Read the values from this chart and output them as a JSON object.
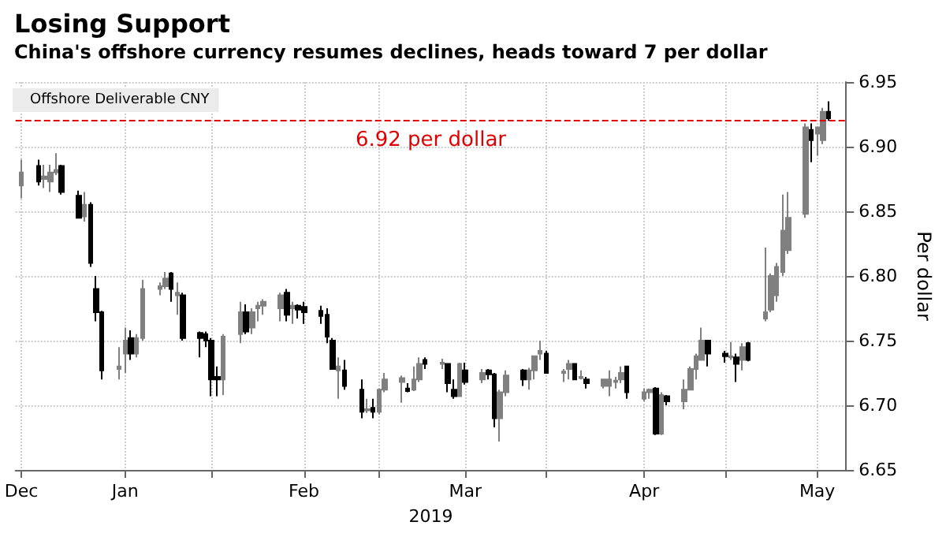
{
  "chart_data": {
    "type": "candlestick",
    "title": "Losing Support",
    "subtitle": "China's offshore currency resumes declines, heads toward 7 per dollar",
    "xlabel": "2019",
    "ylabel": "Per dollar",
    "x": [
      "2018-12-14",
      "2018-12-17",
      "2018-12-18",
      "2018-12-19",
      "2018-12-20",
      "2018-12-21",
      "2018-12-24",
      "2018-12-25",
      "2018-12-26",
      "2018-12-27",
      "2018-12-28",
      "2018-12-31",
      "2019-01-01",
      "2019-01-02",
      "2019-01-03",
      "2019-01-04",
      "2019-01-07",
      "2019-01-08",
      "2019-01-09",
      "2019-01-10",
      "2019-01-11",
      "2019-01-14",
      "2019-01-15",
      "2019-01-16",
      "2019-01-17",
      "2019-01-18",
      "2019-01-21",
      "2019-01-22",
      "2019-01-23",
      "2019-01-24",
      "2019-01-25",
      "2019-01-28",
      "2019-01-29",
      "2019-01-30",
      "2019-01-31",
      "2019-02-01",
      "2019-02-04",
      "2019-02-05",
      "2019-02-06",
      "2019-02-07",
      "2019-02-08",
      "2019-02-11",
      "2019-02-12",
      "2019-02-13",
      "2019-02-14",
      "2019-02-15",
      "2019-02-18",
      "2019-02-19",
      "2019-02-20",
      "2019-02-21",
      "2019-02-22",
      "2019-02-25",
      "2019-02-26",
      "2019-02-27",
      "2019-02-28",
      "2019-03-01",
      "2019-03-04",
      "2019-03-05",
      "2019-03-06",
      "2019-03-07",
      "2019-03-08",
      "2019-03-11",
      "2019-03-12",
      "2019-03-13",
      "2019-03-14",
      "2019-03-15",
      "2019-03-18",
      "2019-03-19",
      "2019-03-20",
      "2019-03-21",
      "2019-03-22",
      "2019-03-25",
      "2019-03-26",
      "2019-03-27",
      "2019-03-28",
      "2019-03-29",
      "2019-04-01",
      "2019-04-02",
      "2019-04-03",
      "2019-04-04",
      "2019-04-05",
      "2019-04-08",
      "2019-04-09",
      "2019-04-10",
      "2019-04-11",
      "2019-04-12",
      "2019-04-15",
      "2019-04-16",
      "2019-04-17",
      "2019-04-18",
      "2019-04-19",
      "2019-04-22",
      "2019-04-23",
      "2019-04-24",
      "2019-04-25",
      "2019-04-26",
      "2019-04-29",
      "2019-04-30",
      "2019-05-01",
      "2019-05-02",
      "2019-05-03"
    ],
    "series": [
      {
        "name": "Offshore Deliverable CNY",
        "ohlc": [
          [
            6.87,
            6.89,
            6.86,
            6.88
          ],
          [
            6.885,
            6.89,
            6.87,
            6.873
          ],
          [
            6.875,
            6.886,
            6.868,
            6.877
          ],
          [
            6.873,
            6.886,
            6.865,
            6.88
          ],
          [
            6.88,
            6.895,
            6.878,
            6.882
          ],
          [
            6.885,
            6.886,
            6.863,
            6.865
          ],
          [
            6.862,
            6.866,
            6.845,
            6.845
          ],
          [
            6.846,
            6.865,
            6.842,
            6.855
          ],
          [
            6.855,
            6.857,
            6.807,
            6.81
          ],
          [
            6.79,
            6.8,
            6.765,
            6.772
          ],
          [
            6.772,
            6.773,
            6.72,
            6.727
          ],
          [
            6.728,
            6.745,
            6.72,
            6.73
          ],
          [
            6.74,
            6.76,
            6.725,
            6.75
          ],
          [
            6.752,
            6.758,
            6.735,
            6.74
          ],
          [
            6.74,
            6.755,
            6.737,
            6.752
          ],
          [
            6.752,
            6.797,
            6.75,
            6.79
          ],
          [
            6.79,
            6.795,
            6.785,
            6.792
          ],
          [
            6.792,
            6.803,
            6.79,
            6.798
          ],
          [
            6.802,
            6.803,
            6.78,
            6.79
          ],
          [
            6.785,
            6.795,
            6.77,
            6.787
          ],
          [
            6.785,
            6.787,
            6.75,
            6.752
          ],
          [
            6.756,
            6.757,
            6.737,
            6.752
          ],
          [
            6.755,
            6.757,
            6.745,
            6.75
          ],
          [
            6.75,
            6.752,
            6.707,
            6.72
          ],
          [
            6.722,
            6.73,
            6.707,
            6.72
          ],
          [
            6.72,
            6.755,
            6.708,
            6.753
          ],
          [
            6.755,
            6.78,
            6.748,
            6.772
          ],
          [
            6.772,
            6.778,
            6.755,
            6.757
          ],
          [
            6.76,
            6.775,
            6.755,
            6.772
          ],
          [
            6.775,
            6.78,
            6.765,
            6.777
          ],
          [
            6.777,
            6.782,
            6.77,
            6.78
          ],
          [
            6.775,
            6.787,
            6.765,
            6.785
          ],
          [
            6.787,
            6.79,
            6.765,
            6.77
          ],
          [
            6.775,
            6.78,
            6.763,
            6.777
          ],
          [
            6.777,
            6.778,
            6.767,
            6.774
          ],
          [
            6.776,
            6.78,
            6.763,
            6.772
          ],
          [
            6.773,
            6.777,
            6.763,
            6.769
          ],
          [
            6.77,
            6.775,
            6.748,
            6.753
          ],
          [
            6.75,
            6.752,
            6.728,
            6.728
          ],
          [
            6.727,
            6.737,
            6.705,
            6.73
          ],
          [
            6.727,
            6.735,
            6.712,
            6.715
          ],
          [
            6.712,
            6.72,
            6.69,
            6.695
          ],
          [
            6.696,
            6.705,
            6.694,
            6.697
          ],
          [
            6.698,
            6.705,
            6.69,
            6.695
          ],
          [
            6.695,
            6.713,
            6.693,
            6.712
          ],
          [
            6.712,
            6.725,
            6.71,
            6.72
          ],
          [
            6.718,
            6.723,
            6.702,
            6.721
          ],
          [
            6.713,
            6.717,
            6.71,
            6.711
          ],
          [
            6.712,
            6.73,
            6.711,
            6.72
          ],
          [
            6.72,
            6.737,
            6.718,
            6.732
          ],
          [
            6.735,
            6.737,
            6.728,
            6.732
          ],
          [
            6.732,
            6.736,
            6.728,
            6.733
          ],
          [
            6.732,
            6.732,
            6.71,
            6.717
          ],
          [
            6.712,
            6.72,
            6.705,
            6.707
          ],
          [
            6.707,
            6.733,
            6.707,
            6.732
          ],
          [
            6.727,
            6.733,
            6.716,
            6.718
          ],
          [
            6.72,
            6.728,
            6.717,
            6.725
          ],
          [
            6.727,
            6.728,
            6.72,
            6.724
          ],
          [
            6.724,
            6.725,
            6.683,
            6.69
          ],
          [
            6.69,
            6.712,
            6.672,
            6.71
          ],
          [
            6.71,
            6.727,
            6.707,
            6.723
          ],
          [
            6.727,
            6.728,
            6.715,
            6.72
          ],
          [
            6.72,
            6.729,
            6.712,
            6.727
          ],
          [
            6.727,
            6.738,
            6.72,
            6.738
          ],
          [
            6.74,
            6.75,
            6.735,
            6.742
          ],
          [
            6.74,
            6.742,
            6.725,
            6.725
          ],
          [
            6.725,
            6.728,
            6.718,
            6.726
          ],
          [
            6.728,
            6.735,
            6.72,
            6.732
          ],
          [
            6.732,
            6.732,
            6.72,
            6.72
          ],
          [
            6.721,
            6.727,
            6.72,
            6.722
          ],
          [
            6.72,
            6.722,
            6.713,
            6.717
          ],
          [
            6.715,
            6.72,
            6.713,
            6.72
          ],
          [
            6.715,
            6.727,
            6.707,
            6.72
          ],
          [
            6.718,
            6.722,
            6.713,
            6.719
          ],
          [
            6.72,
            6.73,
            6.717,
            6.725
          ],
          [
            6.73,
            6.73,
            6.705,
            6.71
          ],
          [
            6.705,
            6.713,
            6.703,
            6.71
          ],
          [
            6.71,
            6.713,
            6.705,
            6.712
          ],
          [
            6.713,
            6.714,
            6.677,
            6.678
          ],
          [
            6.678,
            6.71,
            6.677,
            6.708
          ],
          [
            6.707,
            6.708,
            6.7,
            6.703
          ],
          [
            6.703,
            6.72,
            6.697,
            6.712
          ],
          [
            6.712,
            6.73,
            6.712,
            6.728
          ],
          [
            6.728,
            6.74,
            6.72,
            6.738
          ],
          [
            6.735,
            6.76,
            6.735,
            6.75
          ],
          [
            6.75,
            6.75,
            6.73,
            6.74
          ],
          [
            6.74,
            6.742,
            6.733,
            6.738
          ],
          [
            6.737,
            6.749,
            6.735,
            6.738
          ],
          [
            6.737,
            6.74,
            6.718,
            6.732
          ],
          [
            6.735,
            6.748,
            6.727,
            6.745
          ],
          [
            6.748,
            6.749,
            6.734,
            6.735
          ],
          [
            6.767,
            6.822,
            6.765,
            6.772
          ],
          [
            6.774,
            6.802,
            6.772,
            6.8
          ],
          [
            6.785,
            6.81,
            6.78,
            6.807
          ],
          [
            6.803,
            6.863,
            6.8,
            6.835
          ],
          [
            6.82,
            6.865,
            6.817,
            6.845
          ],
          [
            6.848,
            6.918,
            6.845,
            6.915
          ],
          [
            6.913,
            6.918,
            6.888,
            6.905
          ],
          [
            6.91,
            6.915,
            6.893,
            6.915
          ],
          [
            6.905,
            6.93,
            6.902,
            6.927
          ],
          [
            6.927,
            6.935,
            6.92,
            6.922
          ]
        ],
        "colors": [
          "#808080",
          "#000000",
          "#808080",
          "#808080",
          "#808080",
          "#000000",
          "#000000",
          "#808080",
          "#000000",
          "#000000",
          "#000000",
          "#808080",
          "#808080",
          "#000000",
          "#808080",
          "#808080",
          "#808080",
          "#808080",
          "#000000",
          "#808080",
          "#000000",
          "#000000",
          "#000000",
          "#000000",
          "#000000",
          "#808080",
          "#808080",
          "#000000",
          "#808080",
          "#808080",
          "#808080",
          "#808080",
          "#000000",
          "#808080",
          "#000000",
          "#000000",
          "#000000",
          "#000000",
          "#000000",
          "#808080",
          "#000000",
          "#000000",
          "#808080",
          "#000000",
          "#808080",
          "#808080",
          "#808080",
          "#000000",
          "#808080",
          "#808080",
          "#000000",
          "#808080",
          "#000000",
          "#000000",
          "#808080",
          "#000000",
          "#808080",
          "#000000",
          "#000000",
          "#808080",
          "#808080",
          "#000000",
          "#808080",
          "#808080",
          "#808080",
          "#000000",
          "#808080",
          "#808080",
          "#000000",
          "#808080",
          "#000000",
          "#808080",
          "#808080",
          "#808080",
          "#808080",
          "#000000",
          "#808080",
          "#808080",
          "#000000",
          "#808080",
          "#000000",
          "#808080",
          "#808080",
          "#808080",
          "#808080",
          "#000000",
          "#000000",
          "#808080",
          "#000000",
          "#808080",
          "#000000",
          "#808080",
          "#808080",
          "#808080",
          "#808080",
          "#808080",
          "#808080",
          "#000000",
          "#808080",
          "#808080",
          "#000000"
        ]
      }
    ],
    "xlim": [
      "2018-12-13",
      "2019-05-06"
    ],
    "xticks": [
      {
        "value": "2018-12-14",
        "label": "Dec"
      },
      {
        "value": "2019-01-01",
        "label": "Jan"
      },
      {
        "value": "2019-01-16",
        "label": null
      },
      {
        "value": "2019-02-01",
        "label": "Feb"
      },
      {
        "value": "2019-02-14",
        "label": null
      },
      {
        "value": "2019-03-01",
        "label": "Mar"
      },
      {
        "value": "2019-03-15",
        "label": null
      },
      {
        "value": "2019-04-01",
        "label": "Apr"
      },
      {
        "value": "2019-04-15",
        "label": null
      },
      {
        "value": "2019-05-01",
        "label": "May"
      }
    ],
    "ylim": [
      6.65,
      6.95
    ],
    "yticks": [
      {
        "value": 6.65,
        "label": "6.65"
      },
      {
        "value": 6.7,
        "label": "6.70"
      },
      {
        "value": 6.75,
        "label": "6.75"
      },
      {
        "value": 6.8,
        "label": "6.80"
      },
      {
        "value": 6.85,
        "label": "6.85"
      },
      {
        "value": 6.9,
        "label": "6.90"
      },
      {
        "value": 6.95,
        "label": "6.95"
      }
    ],
    "ref_lines": [
      {
        "axis": "y",
        "value": 6.92,
        "label": "6.92 per dollar",
        "color": "#e00000",
        "line_style": "dashed"
      }
    ],
    "grid": true,
    "legend": "top left"
  }
}
